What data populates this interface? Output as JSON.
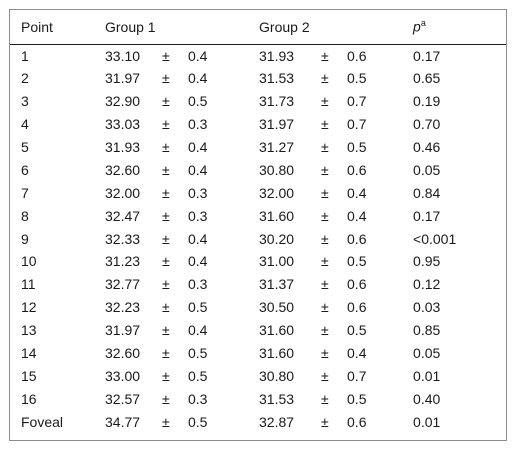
{
  "table": {
    "headers": {
      "point": "Point",
      "group1": "Group 1",
      "group2": "Group 2",
      "p_letter": "p",
      "p_sup": "a"
    },
    "pm_symbol": "±",
    "rows": [
      {
        "point": "1",
        "g1_mean": "33.10",
        "g1_sd": "0.4",
        "g2_mean": "31.93",
        "g2_sd": "0.6",
        "p": "0.17"
      },
      {
        "point": "2",
        "g1_mean": "31.97",
        "g1_sd": "0.4",
        "g2_mean": "31.53",
        "g2_sd": "0.5",
        "p": "0.65"
      },
      {
        "point": "3",
        "g1_mean": "32.90",
        "g1_sd": "0.5",
        "g2_mean": "31.73",
        "g2_sd": "0.7",
        "p": "0.19"
      },
      {
        "point": "4",
        "g1_mean": "33.03",
        "g1_sd": "0.3",
        "g2_mean": "31.97",
        "g2_sd": "0.7",
        "p": "0.70"
      },
      {
        "point": "5",
        "g1_mean": "31.93",
        "g1_sd": "0.4",
        "g2_mean": "31.27",
        "g2_sd": "0.5",
        "p": "0.46"
      },
      {
        "point": "6",
        "g1_mean": "32.60",
        "g1_sd": "0.4",
        "g2_mean": "30.80",
        "g2_sd": "0.6",
        "p": "0.05"
      },
      {
        "point": "7",
        "g1_mean": "32.00",
        "g1_sd": "0.3",
        "g2_mean": "32.00",
        "g2_sd": "0.4",
        "p": "0.84"
      },
      {
        "point": "8",
        "g1_mean": "32.47",
        "g1_sd": "0.3",
        "g2_mean": "31.60",
        "g2_sd": "0.4",
        "p": "0.17"
      },
      {
        "point": "9",
        "g1_mean": "32.33",
        "g1_sd": "0.4",
        "g2_mean": "30.20",
        "g2_sd": "0.6",
        "p": "<0.001"
      },
      {
        "point": "10",
        "g1_mean": "31.23",
        "g1_sd": "0.4",
        "g2_mean": "31.00",
        "g2_sd": "0.5",
        "p": "0.95"
      },
      {
        "point": "11",
        "g1_mean": "32.77",
        "g1_sd": "0.3",
        "g2_mean": "31.37",
        "g2_sd": "0.6",
        "p": "0.12"
      },
      {
        "point": "12",
        "g1_mean": "32.23",
        "g1_sd": "0.5",
        "g2_mean": "30.50",
        "g2_sd": "0.6",
        "p": "0.03"
      },
      {
        "point": "13",
        "g1_mean": "31.97",
        "g1_sd": "0.4",
        "g2_mean": "31.60",
        "g2_sd": "0.5",
        "p": "0.85"
      },
      {
        "point": "14",
        "g1_mean": "32.60",
        "g1_sd": "0.5",
        "g2_mean": "31.60",
        "g2_sd": "0.4",
        "p": "0.05"
      },
      {
        "point": "15",
        "g1_mean": "33.00",
        "g1_sd": "0.5",
        "g2_mean": "30.80",
        "g2_sd": "0.7",
        "p": "0.01"
      },
      {
        "point": "16",
        "g1_mean": "32.57",
        "g1_sd": "0.3",
        "g2_mean": "31.53",
        "g2_sd": "0.5",
        "p": "0.40"
      },
      {
        "point": "Foveal",
        "g1_mean": "34.77",
        "g1_sd": "0.5",
        "g2_mean": "32.87",
        "g2_sd": "0.6",
        "p": "0.01"
      }
    ]
  }
}
